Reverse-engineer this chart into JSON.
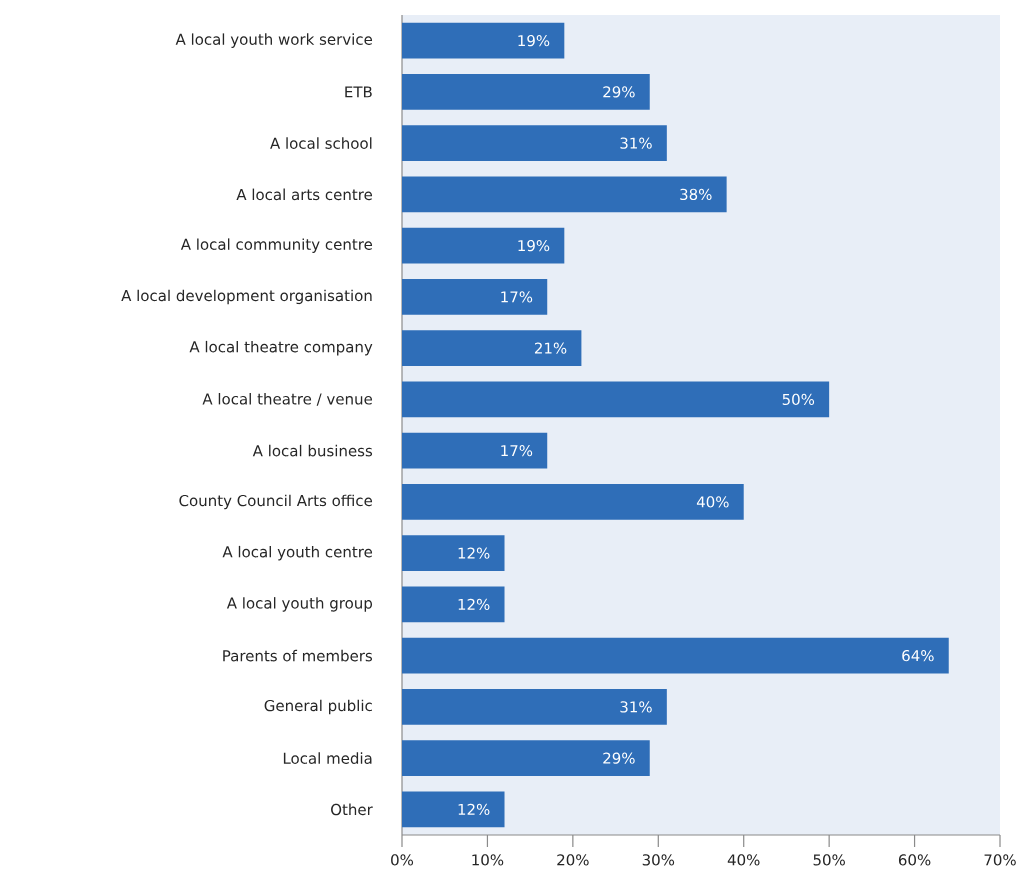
{
  "chart_data": {
    "type": "bar",
    "orientation": "horizontal",
    "categories": [
      "A local youth work service",
      "ETB",
      "A local school",
      "A local arts centre",
      "A local community centre",
      "A local development organisation",
      "A local theatre company",
      "A local theatre / venue",
      "A local business",
      "County Council Arts office",
      "A local youth centre",
      "A local youth group",
      "Parents of members",
      "General public",
      "Local media",
      "Other"
    ],
    "values": [
      19,
      29,
      31,
      38,
      19,
      17,
      21,
      50,
      17,
      40,
      12,
      12,
      64,
      31,
      29,
      12
    ],
    "value_labels": [
      "19%",
      "29%",
      "31%",
      "38%",
      "19%",
      "17%",
      "21%",
      "50%",
      "17%",
      "40%",
      "12%",
      "12%",
      "64%",
      "31%",
      "29%",
      "12%"
    ],
    "color": "#2f6eb8",
    "xlim": [
      0,
      70
    ],
    "xticks": [
      {
        "value": 0,
        "label": "0%"
      },
      {
        "value": 10,
        "label": "10%"
      },
      {
        "value": 20,
        "label": "20%"
      },
      {
        "value": 30,
        "label": "30%"
      },
      {
        "value": 40,
        "label": "40%"
      },
      {
        "value": 50,
        "label": "50%"
      },
      {
        "value": 60,
        "label": "60%"
      },
      {
        "value": 70,
        "label": "70%"
      }
    ],
    "grid": false
  }
}
